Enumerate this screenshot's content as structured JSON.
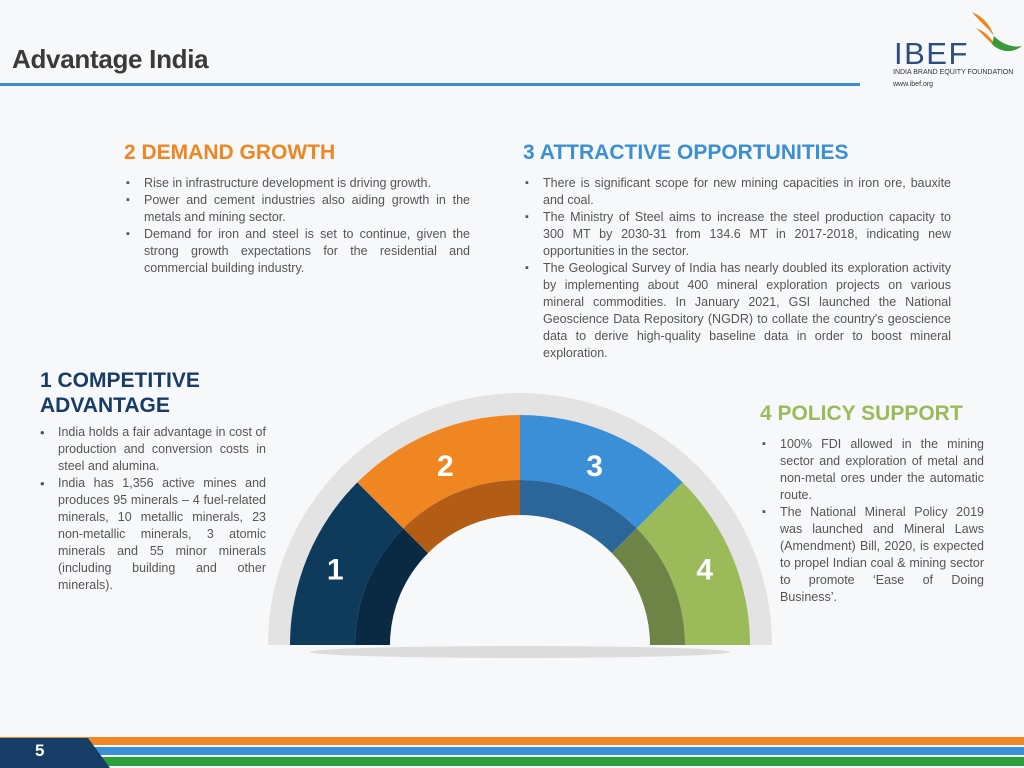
{
  "header": {
    "title": "Advantage India",
    "logo": {
      "name": "IBEF",
      "subtitle": "INDIA BRAND EQUITY FOUNDATION",
      "url": "www.ibef.org"
    }
  },
  "sections": {
    "demand": {
      "heading": "2 DEMAND GROWTH",
      "bullets": [
        "Rise in infrastructure development is driving growth.",
        "Power and cement industries also aiding growth in the metals and mining sector.",
        "Demand for iron and steel is set to continue, given the strong growth expectations for the residential and commercial building industry."
      ]
    },
    "opportunities": {
      "heading": "3 ATTRACTIVE OPPORTUNITIES",
      "bullets": [
        "There is significant scope for new mining capacities in iron ore, bauxite and coal.",
        "The Ministry of Steel aims to increase the steel production capacity to 300 MT by 2030-31 from 134.6 MT in 2017-2018, indicating new opportunities in the sector.",
        "The Geological Survey of India has nearly doubled its exploration activity by implementing about 400 mineral exploration projects on various mineral commodities. In January 2021, GSI launched the National Geoscience Data Repository (NGDR) to collate the country's geoscience data to derive high-quality baseline data in order to boost mineral exploration."
      ]
    },
    "competitive": {
      "heading_line1": "1 COMPETITIVE",
      "heading_line2": "ADVANTAGE",
      "bullets": [
        "India holds a fair advantage in cost of production and conversion costs in steel and alumina.",
        "India has 1,356 active mines and produces 95 minerals – 4 fuel-related minerals, 10 metallic minerals, 23 non-metallic minerals, 3 atomic minerals and 55 minor minerals (including building and other minerals)."
      ]
    },
    "policy": {
      "heading": "4 POLICY SUPPORT",
      "bullets": [
        "100% FDI allowed in the mining sector and exploration of metal and non-metal ores under the automatic route.",
        "The National Mineral Policy 2019 was launched and Mineral Laws (Amendment) Bill, 2020, is expected to propel Indian coal & mining sector to promote ‘Ease of Doing Business’."
      ]
    }
  },
  "gauge": {
    "segments": [
      {
        "label": "1",
        "color": "#0e3a5c",
        "inner": "#0a2a44"
      },
      {
        "label": "2",
        "color": "#ef8622",
        "inner": "#b35c15"
      },
      {
        "label": "3",
        "color": "#3a8fd6",
        "inner": "#2a6699"
      },
      {
        "label": "4",
        "color": "#9bba5a",
        "inner": "#6e8446"
      }
    ]
  },
  "footer": {
    "page": "5"
  }
}
